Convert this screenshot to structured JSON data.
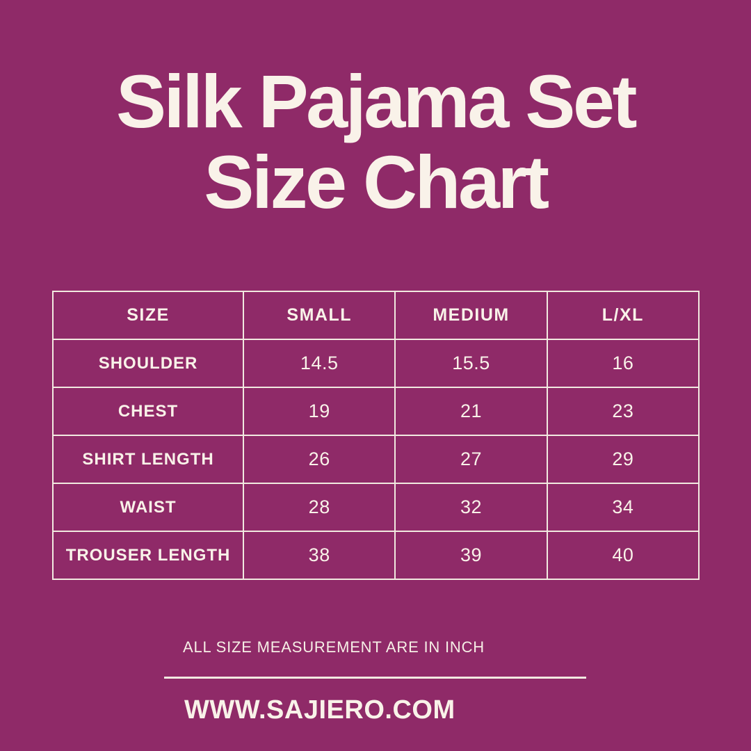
{
  "poster": {
    "background_color": "#8F2A68",
    "text_color": "#F9F2E9",
    "border_color": "#F2EAE1"
  },
  "title": {
    "line1": "Silk Pajama Set",
    "line2": "Size Chart"
  },
  "size_chart": {
    "columns": [
      "SIZE",
      "SMALL",
      "MEDIUM",
      "L/XL"
    ],
    "rows": [
      {
        "label": "SHOULDER",
        "values": [
          "14.5",
          "15.5",
          "16"
        ]
      },
      {
        "label": "CHEST",
        "values": [
          "19",
          "21",
          "23"
        ]
      },
      {
        "label": "SHIRT LENGTH",
        "values": [
          "26",
          "27",
          "29"
        ]
      },
      {
        "label": "WAIST",
        "values": [
          "28",
          "32",
          "34"
        ]
      },
      {
        "label": "TROUSER LENGTH",
        "values": [
          "38",
          "39",
          "40"
        ]
      }
    ]
  },
  "footer": {
    "note": "ALL SIZE MEASUREMENT ARE IN INCH",
    "website": "WWW.SAJIERO.COM"
  },
  "chart_data": {
    "type": "table",
    "title": "Silk Pajama Set Size Chart",
    "columns": [
      "SIZE",
      "SMALL",
      "MEDIUM",
      "L/XL"
    ],
    "rows": [
      [
        "SHOULDER",
        14.5,
        15.5,
        16
      ],
      [
        "CHEST",
        19,
        21,
        23
      ],
      [
        "SHIRT LENGTH",
        26,
        27,
        29
      ],
      [
        "WAIST",
        28,
        32,
        34
      ],
      [
        "TROUSER LENGTH",
        38,
        39,
        40
      ]
    ],
    "units": "inch",
    "note": "ALL SIZE MEASUREMENT ARE IN INCH"
  }
}
